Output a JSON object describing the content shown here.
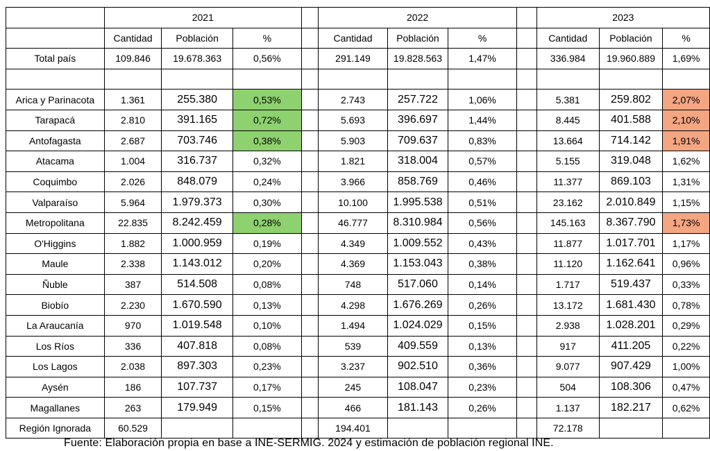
{
  "years": [
    "2021",
    "2022",
    "2023"
  ],
  "col_headers": [
    "Cantidad",
    "Población",
    "%"
  ],
  "total": {
    "label": "Total país",
    "y2021": [
      "109.846",
      "19.678.363",
      "0,56%"
    ],
    "y2022": [
      "291.149",
      "19.828.563",
      "1,47%"
    ],
    "y2023": [
      "336.984",
      "19.960.889",
      "1,69%"
    ]
  },
  "regions": [
    {
      "name": "Arica y Parinacota",
      "y2021": [
        "1.361",
        "255.380",
        "0,53%"
      ],
      "y2022": [
        "2.743",
        "257.722",
        "1,06%"
      ],
      "y2023": [
        "5.381",
        "259.802",
        "2,07%"
      ],
      "hl2021": "green",
      "hl2023": "orange"
    },
    {
      "name": "Tarapacá",
      "y2021": [
        "2.810",
        "391.165",
        "0,72%"
      ],
      "y2022": [
        "5.693",
        "396.697",
        "1,44%"
      ],
      "y2023": [
        "8.445",
        "401.588",
        "2,10%"
      ],
      "hl2021": "green",
      "hl2023": "orange"
    },
    {
      "name": "Antofagasta",
      "y2021": [
        "2.687",
        "703.746",
        "0,38%"
      ],
      "y2022": [
        "5.903",
        "709.637",
        "0,83%"
      ],
      "y2023": [
        "13.664",
        "714.142",
        "1,91%"
      ],
      "hl2021": "green",
      "hl2023": "orange"
    },
    {
      "name": "Atacama",
      "y2021": [
        "1.004",
        "316.737",
        "0,32%"
      ],
      "y2022": [
        "1.821",
        "318.004",
        "0,57%"
      ],
      "y2023": [
        "5.155",
        "319.048",
        "1,62%"
      ]
    },
    {
      "name": "Coquimbo",
      "y2021": [
        "2.026",
        "848.079",
        "0,24%"
      ],
      "y2022": [
        "3.966",
        "858.769",
        "0,46%"
      ],
      "y2023": [
        "11.377",
        "869.103",
        "1,31%"
      ]
    },
    {
      "name": "Valparaíso",
      "y2021": [
        "5.964",
        "1.979.373",
        "0,30%"
      ],
      "y2022": [
        "10.100",
        "1.995.538",
        "0,51%"
      ],
      "y2023": [
        "23.162",
        "2.010.849",
        "1,15%"
      ]
    },
    {
      "name": "Metropolitana",
      "y2021": [
        "22.835",
        "8.242.459",
        "0,28%"
      ],
      "y2022": [
        "46.777",
        "8.310.984",
        "0,56%"
      ],
      "y2023": [
        "145.163",
        "8.367.790",
        "1,73%"
      ],
      "hl2021": "green",
      "hl2023": "orange"
    },
    {
      "name": "O'Higgins",
      "y2021": [
        "1.882",
        "1.000.959",
        "0,19%"
      ],
      "y2022": [
        "4.349",
        "1.009.552",
        "0,43%"
      ],
      "y2023": [
        "11.877",
        "1.017.701",
        "1,17%"
      ]
    },
    {
      "name": "Maule",
      "y2021": [
        "2.338",
        "1.143.012",
        "0,20%"
      ],
      "y2022": [
        "4.369",
        "1.153.043",
        "0,38%"
      ],
      "y2023": [
        "11.120",
        "1.162.641",
        "0,96%"
      ]
    },
    {
      "name": "Ñuble",
      "y2021": [
        "387",
        "514.508",
        "0,08%"
      ],
      "y2022": [
        "748",
        "517.060",
        "0,14%"
      ],
      "y2023": [
        "1.717",
        "519.437",
        "0,33%"
      ]
    },
    {
      "name": "Biobío",
      "y2021": [
        "2.230",
        "1.670.590",
        "0,13%"
      ],
      "y2022": [
        "4.298",
        "1.676.269",
        "0,26%"
      ],
      "y2023": [
        "13.172",
        "1.681.430",
        "0,78%"
      ]
    },
    {
      "name": "La Araucanía",
      "y2021": [
        "970",
        "1.019.548",
        "0,10%"
      ],
      "y2022": [
        "1.494",
        "1.024.029",
        "0,15%"
      ],
      "y2023": [
        "2.938",
        "1.028.201",
        "0,29%"
      ]
    },
    {
      "name": "Los Ríos",
      "y2021": [
        "336",
        "407.818",
        "0,08%"
      ],
      "y2022": [
        "539",
        "409.559",
        "0,13%"
      ],
      "y2023": [
        "917",
        "411.205",
        "0,22%"
      ]
    },
    {
      "name": "Los Lagos",
      "y2021": [
        "2.038",
        "897.303",
        "0,23%"
      ],
      "y2022": [
        "3.237",
        "902.510",
        "0,36%"
      ],
      "y2023": [
        "9.077",
        "907.429",
        "1,00%"
      ]
    },
    {
      "name": "Aysén",
      "y2021": [
        "186",
        "107.737",
        "0,17%"
      ],
      "y2022": [
        "245",
        "108.047",
        "0,23%"
      ],
      "y2023": [
        "504",
        "108.306",
        "0,47%"
      ]
    },
    {
      "name": "Magallanes",
      "y2021": [
        "263",
        "179.949",
        "0,15%"
      ],
      "y2022": [
        "466",
        "181.143",
        "0,26%"
      ],
      "y2023": [
        "1.137",
        "182.217",
        "0,62%"
      ]
    }
  ],
  "ignorada": {
    "name": "Región Ignorada",
    "y2021": "60.529",
    "y2022": "194.401",
    "y2023": "72.178"
  },
  "highlight_colors": {
    "green": "#8ed16f",
    "orange": "#f4a582"
  },
  "caption": "Fuente: Elaboración propia en base a INE-SERMIG. 2024 y estimación de población regional INE."
}
